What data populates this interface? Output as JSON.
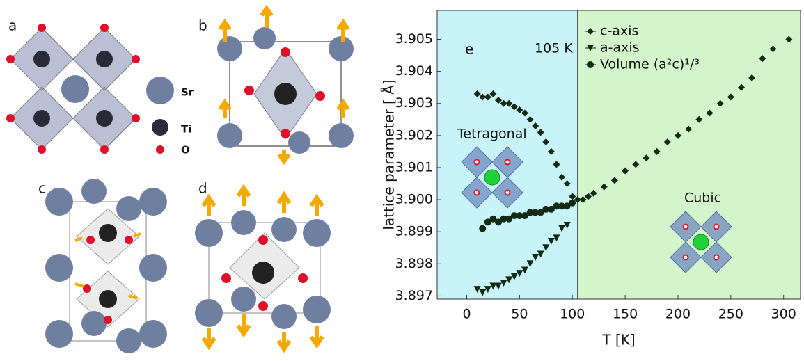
{
  "panel_labels": [
    "a",
    "b",
    "c",
    "d"
  ],
  "legend_elements": [
    "Sr",
    "Ti",
    "O"
  ],
  "chart_data": {
    "type": "scatter",
    "panel_label": "e",
    "transition_annotation": "105 K",
    "transition_x": 105,
    "phase_labels": [
      "Tetragonal",
      "Cubic"
    ],
    "x_label": "T [K]",
    "y_label": "lattice parameter [ Å]",
    "xlim": [
      -28,
      316
    ],
    "ylim": [
      3.8969,
      3.9059
    ],
    "xticks": [
      0,
      50,
      100,
      150,
      200,
      250,
      300
    ],
    "yticks": [
      {
        "value": 3.897,
        "label": "3.897"
      },
      {
        "value": 3.898,
        "label": "3.898"
      },
      {
        "value": 3.899,
        "label": "3.899"
      },
      {
        "value": 3.9,
        "label": "3.900"
      },
      {
        "value": 3.901,
        "label": "3.901"
      },
      {
        "value": 3.902,
        "label": "3.902"
      },
      {
        "value": 3.903,
        "label": "3.903"
      },
      {
        "value": 3.904,
        "label": "3.904"
      },
      {
        "value": 3.905,
        "label": "3.905"
      }
    ],
    "low_color": "#c8f3f8",
    "high_color": "#d4f5cc",
    "series": [
      {
        "name": "c-axis",
        "marker": "diamond",
        "color": "#152a15",
        "x": [
          10,
          15,
          20,
          25,
          30,
          35,
          40,
          45,
          50,
          55,
          60,
          65,
          70,
          75,
          80,
          85,
          90,
          95,
          100,
          105,
          110,
          115,
          120,
          130,
          140,
          150,
          160,
          170,
          180,
          190,
          200,
          210,
          220,
          230,
          240,
          250,
          260,
          270,
          280,
          290,
          305
        ],
        "values": [
          3.9033,
          3.9032,
          3.9032,
          3.9033,
          3.9031,
          3.903,
          3.903,
          3.9029,
          3.9028,
          3.9027,
          3.9025,
          3.9023,
          3.9021,
          3.9018,
          3.9015,
          3.9011,
          3.9007,
          3.9005,
          3.9001,
          3.9,
          3.9,
          3.9001,
          3.9002,
          3.9004,
          3.9006,
          3.9009,
          3.9011,
          3.9013,
          3.9015,
          3.9018,
          3.902,
          3.9022,
          3.9025,
          3.9027,
          3.903,
          3.9032,
          3.9035,
          3.9038,
          3.9044,
          3.9047,
          3.905
        ]
      },
      {
        "name": "a-axis",
        "marker": "triangle-down",
        "color": "#152a15",
        "x": [
          10,
          15,
          20,
          25,
          30,
          35,
          40,
          45,
          50,
          55,
          60,
          65,
          70,
          75,
          80,
          85,
          90,
          95
        ],
        "values": [
          3.8972,
          3.8971,
          3.8972,
          3.8973,
          3.8973,
          3.8974,
          3.8975,
          3.8976,
          3.8977,
          3.8978,
          3.898,
          3.8982,
          3.8983,
          3.8985,
          3.8987,
          3.8988,
          3.8991,
          3.8992
        ]
      },
      {
        "name": "Volume (a²c)¹/³",
        "marker": "circle",
        "color": "#152a15",
        "x": [
          15,
          20,
          25,
          30,
          35,
          40,
          45,
          50,
          55,
          60,
          65,
          70,
          75,
          80,
          85,
          90,
          95,
          100
        ],
        "values": [
          3.8991,
          3.8993,
          3.8994,
          3.8993,
          3.8994,
          3.8994,
          3.8995,
          3.8995,
          3.8995,
          3.8996,
          3.8996,
          3.8996,
          3.8997,
          3.8997,
          3.8998,
          3.8998,
          3.8998,
          3.8999
        ]
      }
    ]
  }
}
